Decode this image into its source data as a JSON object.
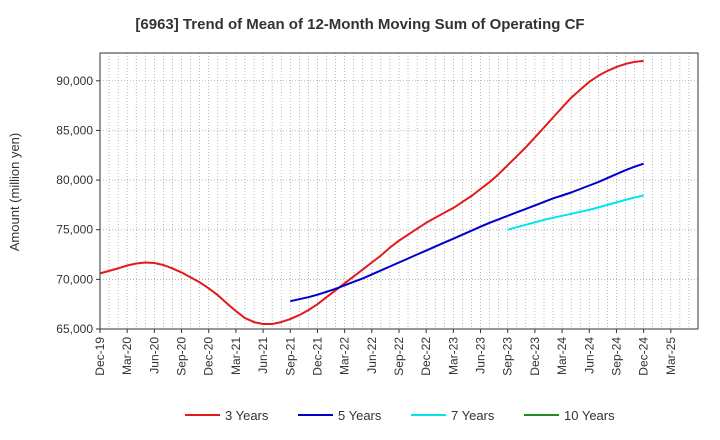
{
  "chart_data": {
    "type": "line",
    "title": "[6963]  Trend of Mean of 12-Month Moving Sum of Operating CF",
    "ylabel": "Amount (million yen)",
    "xlabel": "",
    "ylim": [
      65000,
      92800
    ],
    "yticks": [
      65000,
      70000,
      75000,
      80000,
      85000,
      90000
    ],
    "ytick_labels": [
      "65,000",
      "70,000",
      "75,000",
      "80,000",
      "85,000",
      "90,000"
    ],
    "x_range_months": [
      0,
      66
    ],
    "xtick_labels": [
      "Dec-19",
      "Mar-20",
      "Jun-20",
      "Sep-20",
      "Dec-20",
      "Mar-21",
      "Jun-21",
      "Sep-21",
      "Dec-21",
      "Mar-22",
      "Jun-22",
      "Sep-22",
      "Dec-22",
      "Mar-23",
      "Jun-23",
      "Sep-23",
      "Dec-23",
      "Mar-24",
      "Jun-24",
      "Sep-24",
      "Dec-24",
      "Mar-25"
    ],
    "grid": true,
    "legend_position": "bottom",
    "series": [
      {
        "name": "3 Years",
        "color": "#e31a1c",
        "x": [
          0,
          1,
          2,
          3,
          4,
          5,
          6,
          7,
          8,
          9,
          10,
          11,
          12,
          13,
          14,
          15,
          16,
          17,
          18,
          19,
          20,
          21,
          22,
          23,
          24,
          25,
          26,
          27,
          28,
          29,
          30,
          31,
          32,
          33,
          34,
          35,
          36,
          37,
          38,
          39,
          40,
          41,
          42,
          43,
          44,
          45,
          46,
          47,
          48,
          49,
          50,
          51,
          52,
          53,
          54,
          55,
          56,
          57,
          58,
          59,
          60,
          61,
          62,
          63,
          64,
          65
        ],
        "values": [
          70600,
          70850,
          71100,
          71400,
          71600,
          71700,
          71650,
          71450,
          71100,
          70700,
          70200,
          69700,
          69100,
          68400,
          67600,
          66800,
          66100,
          65700,
          65500,
          65500,
          65700,
          66000,
          66400,
          66900,
          67500,
          68200,
          68900,
          69600,
          70300,
          71000,
          71700,
          72400,
          73200,
          73900,
          74500,
          75100,
          75700,
          76200,
          76700,
          77200,
          77800,
          78400,
          79100,
          79800,
          80600,
          81500,
          82400,
          83300,
          84300,
          85300,
          86300,
          87300,
          88300,
          89100,
          89900,
          90500,
          91000,
          91400,
          91700,
          91900,
          92000,
          null,
          null,
          null,
          null,
          null
        ],
        "note": "monthly values from Dec-19 (x=0) to Dec-24 (x=60)"
      },
      {
        "name": "5 Years",
        "color": "#0000cc",
        "x": [
          21,
          22,
          23,
          24,
          25,
          26,
          27,
          28,
          29,
          30,
          31,
          32,
          33,
          34,
          35,
          36,
          37,
          38,
          39,
          40,
          41,
          42,
          43,
          44,
          45,
          46,
          47,
          48,
          49,
          50,
          51,
          52,
          53,
          54,
          55,
          56,
          57,
          58,
          59,
          60
        ],
        "values": [
          67800,
          68000,
          68200,
          68450,
          68750,
          69050,
          69400,
          69750,
          70100,
          70500,
          70900,
          71300,
          71700,
          72100,
          72500,
          72900,
          73300,
          73700,
          74100,
          74500,
          74900,
          75300,
          75700,
          76050,
          76400,
          76750,
          77100,
          77450,
          77800,
          78150,
          78450,
          78750,
          79100,
          79450,
          79800,
          80200,
          80600,
          81000,
          81350,
          81650
        ]
      },
      {
        "name": "7 Years",
        "color": "#00e5ee",
        "x": [
          45,
          46,
          47,
          48,
          49,
          50,
          51,
          52,
          53,
          54,
          55,
          56,
          57,
          58,
          59,
          60
        ],
        "values": [
          75000,
          75250,
          75500,
          75750,
          76000,
          76200,
          76400,
          76600,
          76800,
          77000,
          77250,
          77500,
          77750,
          78000,
          78250,
          78450
        ]
      },
      {
        "name": "10 Years",
        "color": "#228b22",
        "x": [],
        "values": []
      }
    ]
  }
}
